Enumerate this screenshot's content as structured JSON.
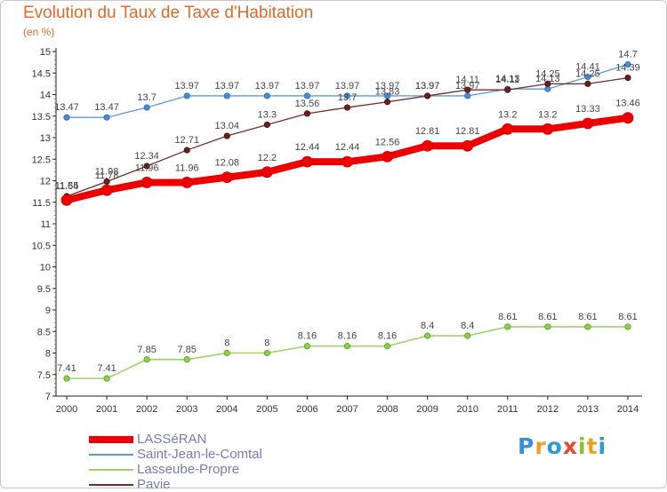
{
  "title": "Evolution du Taux de Taxe d'Habitation",
  "subtitle": "(en %)",
  "logo_text": "Proxiti",
  "chart_data": {
    "type": "line",
    "title": "Evolution du Taux de Taxe d'Habitation",
    "ylabel": "(en %)",
    "xlabel": "",
    "ylim": [
      7,
      15
    ],
    "grid": false,
    "legend_position": "bottom-left",
    "x": [
      "2000",
      "2001",
      "2002",
      "2003",
      "2004",
      "2005",
      "2006",
      "2007",
      "2008",
      "2009",
      "2010",
      "2011",
      "2012",
      "2013",
      "2014"
    ],
    "yticks": [
      "7",
      "7.5",
      "8",
      "8.5",
      "9",
      "9.5",
      "10",
      "10.5",
      "11",
      "11.5",
      "12",
      "12.5",
      "13",
      "13.5",
      "14",
      "14.5",
      "15"
    ],
    "series": [
      {
        "name": "LASSéRAN",
        "color": "#ee0000",
        "values": [
          11.55,
          11.78,
          11.96,
          11.96,
          12.08,
          12.2,
          12.44,
          12.44,
          12.56,
          12.81,
          12.81,
          13.2,
          13.2,
          13.33,
          13.46
        ]
      },
      {
        "name": "Saint-Jean-le-Comtal",
        "color": "#5b9bd5",
        "values": [
          13.47,
          13.47,
          13.7,
          13.97,
          13.97,
          13.97,
          13.97,
          13.97,
          13.97,
          13.97,
          13.97,
          14.13,
          14.13,
          14.41,
          14.7
        ]
      },
      {
        "name": "Lasseube-Propre",
        "color": "#9ed36a",
        "values": [
          7.41,
          7.41,
          7.85,
          7.85,
          8,
          8,
          8.16,
          8.16,
          8.16,
          8.4,
          8.4,
          8.61,
          8.61,
          8.61,
          8.61
        ]
      },
      {
        "name": "Pavie",
        "color": "#7a2a2a",
        "values": [
          11.64,
          11.98,
          12.34,
          12.71,
          13.04,
          13.3,
          13.56,
          13.7,
          13.83,
          13.97,
          14.11,
          14.11,
          14.25,
          14.25,
          14.39
        ]
      }
    ]
  }
}
